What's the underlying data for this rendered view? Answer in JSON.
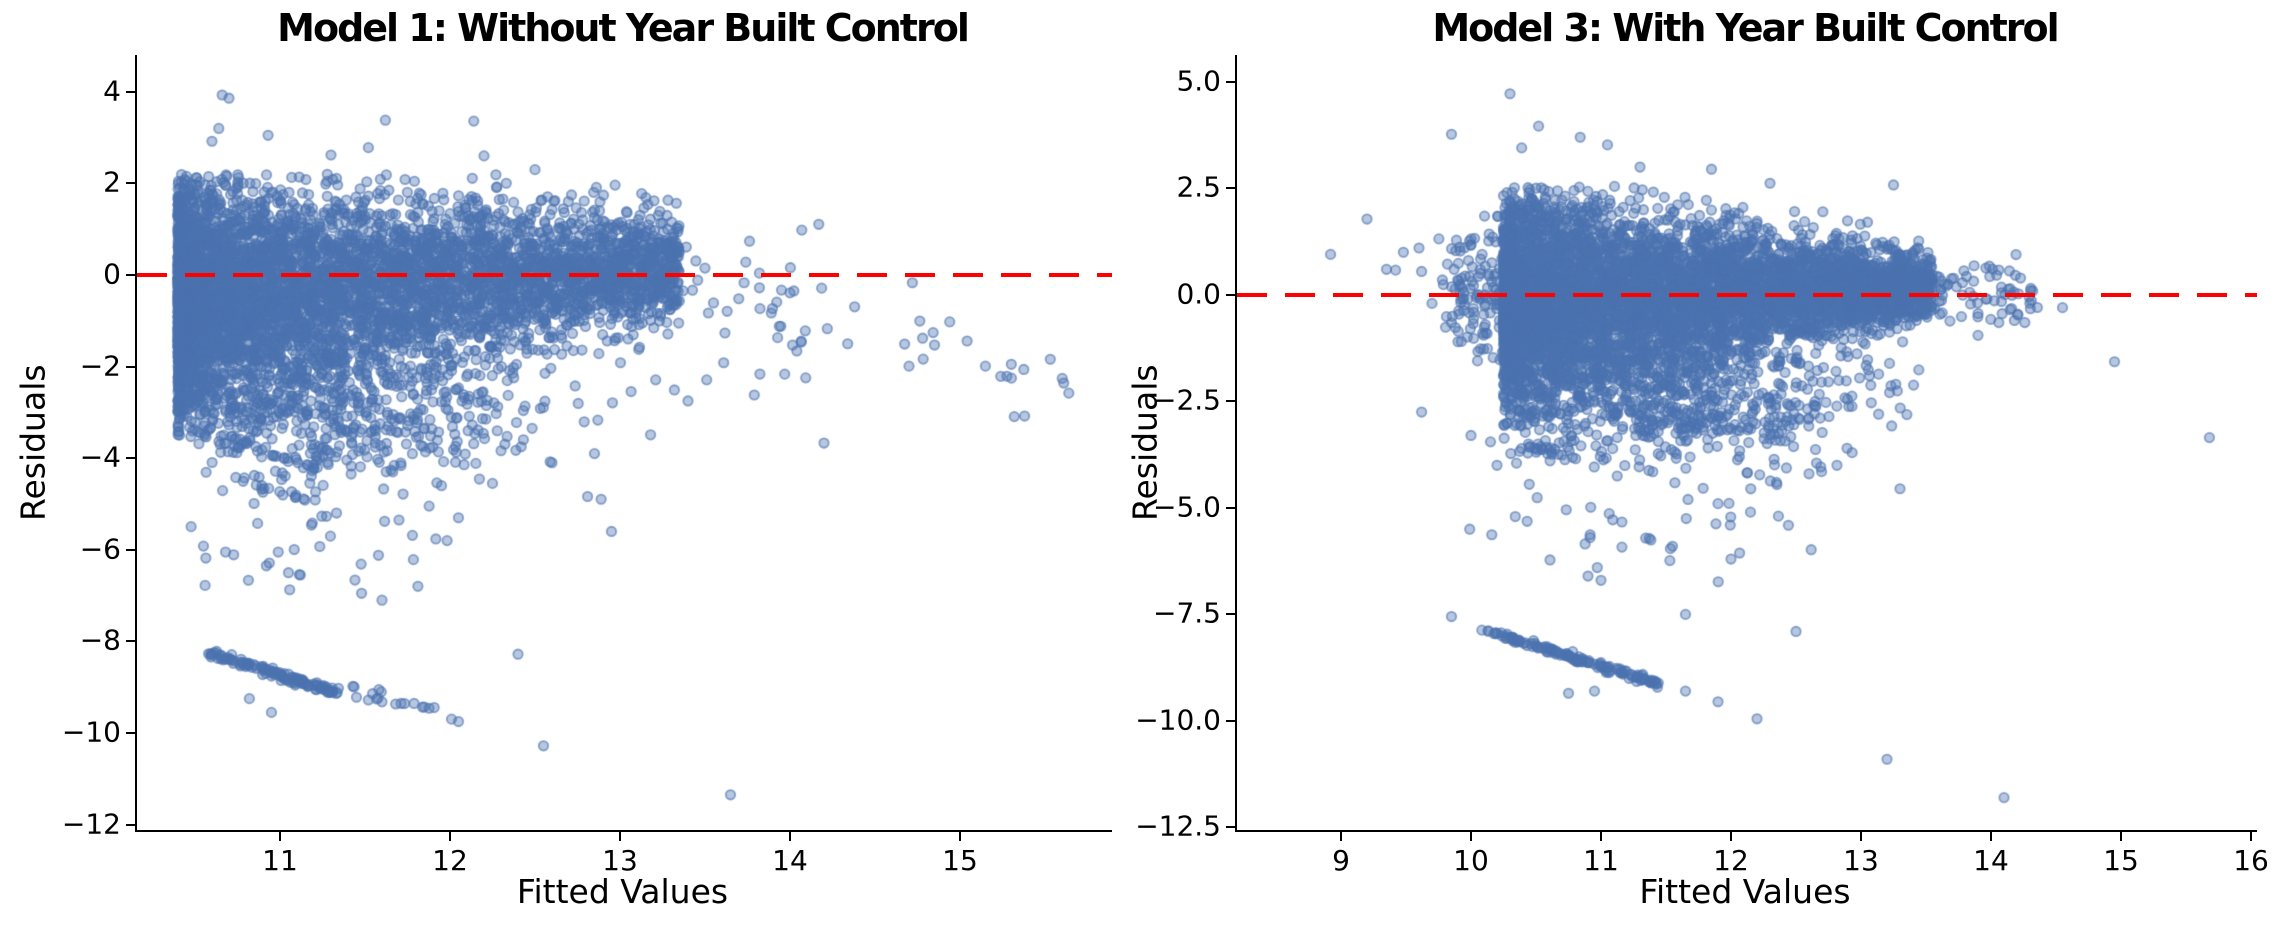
{
  "figure": {
    "background": "#FFFFFF",
    "text_color": "#000000",
    "spine_color": "#000000"
  },
  "chart_data": [
    {
      "type": "scatter",
      "title": "Model 1: Without Year Built Control",
      "xlabel": "Fitted Values",
      "ylabel": "Residuals",
      "xlim": [
        10.159,
        15.894
      ],
      "ylim": [
        -12.118,
        4.803
      ],
      "grid": false,
      "legend": null,
      "xticks": {
        "values": [
          11,
          12,
          13,
          14,
          15
        ],
        "labels": [
          "11",
          "12",
          "13",
          "14",
          "15"
        ]
      },
      "yticks": {
        "values": [
          4,
          2,
          0,
          -2,
          -4,
          -6,
          -8,
          -10,
          -12
        ],
        "labels": [
          "4",
          "2",
          "0",
          "−2",
          "−4",
          "−6",
          "−8",
          "−10",
          "−12"
        ]
      },
      "zero_line": {
        "y": 0,
        "color": "#FF0000",
        "style": "dashed",
        "width": 4,
        "dash": 30,
        "gap": 18
      },
      "marker": {
        "color": "#4C72B0",
        "alpha": 0.4,
        "edge_alpha": 0.62,
        "radius": 4.7,
        "edge_width": 1.8
      },
      "distribution": {
        "wedges": [
          {
            "n": 6000,
            "x0": 10.4,
            "x1": 13.35,
            "cy0": -0.55,
            "cy1": 0.15,
            "sy0": 1.3,
            "sy1": 0.55,
            "xbias": 2.0,
            "clip": [
              -3.6,
              2.25
            ]
          },
          {
            "n": 50,
            "x0": 13.3,
            "x1": 15.7,
            "cy0": -0.2,
            "cy1": -2.4,
            "sy0": 1.0,
            "sy1": 0.6,
            "xbias": 1.5,
            "clip": [
              -3.5,
              1.7
            ]
          }
        ],
        "gaussians": [
          {
            "n": 520,
            "cx": 11.3,
            "cy": -2.9,
            "sx": 0.65,
            "sy": 0.85,
            "clipx": [
              10.45,
              13.1
            ],
            "clipy": [
              -5.6,
              -1.6
            ]
          },
          {
            "n": 26,
            "cx": 11.25,
            "cy": -5.9,
            "sx": 0.5,
            "sy": 0.55,
            "clipx": [
              10.45,
              12.3
            ],
            "clipy": [
              -7.25,
              -4.7
            ]
          }
        ],
        "streaks": [
          {
            "x0": 10.62,
            "y0": -8.28,
            "x1": 11.33,
            "y1": -9.12,
            "n": 130,
            "jitter": 0.035
          },
          {
            "x0": 11.42,
            "y0": -9.0,
            "x1": 12.05,
            "y1": -9.62,
            "n": 16,
            "jitter": 0.07
          },
          {
            "x0": 10.62,
            "y0": -3.55,
            "x1": 11.28,
            "y1": -4.3,
            "n": 26,
            "jitter": 0.05
          },
          {
            "x0": 10.72,
            "y0": -4.45,
            "x1": 11.15,
            "y1": -4.9,
            "n": 13,
            "jitter": 0.05
          }
        ],
        "points": [
          [
            10.66,
            3.93
          ],
          [
            10.7,
            3.86
          ],
          [
            11.62,
            3.38
          ],
          [
            12.14,
            3.36
          ],
          [
            10.64,
            3.2
          ],
          [
            10.93,
            3.05
          ],
          [
            10.6,
            2.92
          ],
          [
            11.3,
            2.62
          ],
          [
            11.52,
            2.78
          ],
          [
            12.2,
            2.6
          ],
          [
            12.5,
            2.3
          ],
          [
            13.2,
            1.62
          ],
          [
            13.28,
            1.0
          ],
          [
            12.91,
            1.16
          ],
          [
            12.98,
            0.98
          ],
          [
            13.25,
            0.61
          ],
          [
            13.39,
            0.61
          ],
          [
            13.5,
            0.15
          ],
          [
            13.74,
            0.28
          ],
          [
            13.73,
            -0.17
          ],
          [
            13.82,
            0.04
          ],
          [
            13.82,
            -0.28
          ],
          [
            13.95,
            -0.33
          ],
          [
            14.0,
            -0.39
          ],
          [
            13.55,
            -0.61
          ],
          [
            13.52,
            -0.83
          ],
          [
            13.89,
            -0.83
          ],
          [
            14.09,
            -1.22
          ],
          [
            14.04,
            -1.66
          ],
          [
            14.78,
            -1.38
          ],
          [
            14.85,
            -1.53
          ],
          [
            14.7,
            -1.99
          ],
          [
            15.61,
            -2.36
          ],
          [
            15.64,
            -2.58
          ],
          [
            15.38,
            -3.08
          ],
          [
            13.18,
            -3.49
          ],
          [
            14.2,
            -3.67
          ],
          [
            13.21,
            -2.29
          ],
          [
            13.32,
            -2.51
          ],
          [
            13.4,
            -2.75
          ],
          [
            13.51,
            -2.29
          ],
          [
            13.79,
            -2.62
          ],
          [
            12.6,
            -4.1
          ],
          [
            12.85,
            -3.9
          ],
          [
            11.95,
            -4.6
          ],
          [
            12.25,
            -4.55
          ],
          [
            11.7,
            -5.35
          ],
          [
            12.05,
            -5.3
          ],
          [
            12.95,
            -5.6
          ],
          [
            10.55,
            -5.92
          ],
          [
            10.68,
            -6.05
          ],
          [
            10.92,
            -6.35
          ],
          [
            11.05,
            -6.5
          ],
          [
            11.12,
            -6.55
          ],
          [
            11.48,
            -6.95
          ],
          [
            11.6,
            -7.1
          ],
          [
            10.82,
            -9.25
          ],
          [
            10.95,
            -9.55
          ],
          [
            11.45,
            -9.22
          ],
          [
            11.52,
            -9.28
          ],
          [
            11.6,
            -9.32
          ],
          [
            12.4,
            -8.28
          ],
          [
            12.55,
            -10.28
          ],
          [
            12.05,
            -9.75
          ],
          [
            13.65,
            -11.35
          ]
        ]
      }
    },
    {
      "type": "scatter",
      "title": "Model 3: With Year Built Control",
      "xlabel": "Fitted Values",
      "ylabel": "Residuals",
      "xlim": [
        8.2,
        16.046
      ],
      "ylim": [
        -12.56,
        5.63
      ],
      "grid": false,
      "legend": null,
      "xticks": {
        "values": [
          9,
          10,
          11,
          12,
          13,
          14,
          15,
          16
        ],
        "labels": [
          "9",
          "10",
          "11",
          "12",
          "13",
          "14",
          "15",
          "16"
        ]
      },
      "yticks": {
        "values": [
          5.0,
          2.5,
          0.0,
          -2.5,
          -5.0,
          -7.5,
          -10.0,
          -12.5
        ],
        "labels": [
          "5.0",
          "2.5",
          "0.0",
          "−2.5",
          "−5.0",
          "−7.5",
          "−10.0",
          "−12.5"
        ]
      },
      "zero_line": {
        "y": 0,
        "color": "#FF0000",
        "style": "dashed",
        "width": 4,
        "dash": 30,
        "gap": 18
      },
      "marker": {
        "color": "#4C72B0",
        "alpha": 0.4,
        "edge_alpha": 0.62,
        "radius": 4.7,
        "edge_width": 1.8
      },
      "distribution": {
        "wedges": [
          {
            "n": 6400,
            "x0": 10.25,
            "x1": 13.55,
            "cy0": -0.2,
            "cy1": 0.2,
            "sy0": 1.3,
            "sy1": 0.35,
            "xbias": 1.55,
            "clip": [
              -3.1,
              2.55
            ]
          },
          {
            "n": 140,
            "x0": 9.72,
            "x1": 10.3,
            "cy0": 0.3,
            "cy1": -0.1,
            "sy0": 0.55,
            "sy1": 1.1,
            "xbias": 0.6,
            "clip": [
              -1.6,
              1.9
            ]
          },
          {
            "n": 70,
            "x0": 13.5,
            "x1": 14.4,
            "cy0": 0.15,
            "cy1": -0.05,
            "sy0": 0.42,
            "sy1": 0.3,
            "xbias": 1.3,
            "clip": [
              -0.9,
              1.0
            ]
          }
        ],
        "gaussians": [
          {
            "n": 600,
            "cx": 11.5,
            "cy": -2.4,
            "sx": 0.85,
            "sy": 0.85,
            "clipx": [
              10.25,
              13.6
            ],
            "clipy": [
              -5.2,
              -1.3
            ]
          },
          {
            "n": 30,
            "cx": 11.4,
            "cy": -5.6,
            "sx": 0.6,
            "sy": 0.6,
            "clipx": [
              10.3,
              12.8
            ],
            "clipy": [
              -6.9,
              -4.5
            ]
          }
        ],
        "streaks": [
          {
            "x0": 10.12,
            "y0": -7.88,
            "x1": 11.5,
            "y1": -9.2,
            "n": 150,
            "jitter": 0.035
          },
          {
            "x0": 10.4,
            "y0": -3.55,
            "x1": 10.78,
            "y1": -3.8,
            "n": 22,
            "jitter": 0.05
          }
        ],
        "points": [
          [
            10.3,
            4.72
          ],
          [
            10.52,
            3.96
          ],
          [
            9.85,
            3.77
          ],
          [
            10.84,
            3.7
          ],
          [
            11.05,
            3.52
          ],
          [
            10.39,
            3.45
          ],
          [
            11.3,
            3.0
          ],
          [
            11.85,
            2.95
          ],
          [
            12.3,
            2.62
          ],
          [
            13.25,
            2.58
          ],
          [
            8.92,
            0.95
          ],
          [
            9.2,
            1.78
          ],
          [
            9.35,
            0.6
          ],
          [
            9.42,
            0.58
          ],
          [
            9.48,
            1.0
          ],
          [
            9.6,
            1.1
          ],
          [
            9.62,
            0.55
          ],
          [
            9.78,
            0.35
          ],
          [
            9.7,
            -0.2
          ],
          [
            9.9,
            -1.1
          ],
          [
            10.05,
            -1.55
          ],
          [
            9.62,
            -2.75
          ],
          [
            10.0,
            -3.3
          ],
          [
            10.15,
            -3.45
          ],
          [
            10.2,
            -4.0
          ],
          [
            10.35,
            -3.95
          ],
          [
            14.95,
            -1.57
          ],
          [
            15.68,
            -3.35
          ],
          [
            14.06,
            -0.65
          ],
          [
            14.18,
            -0.6
          ],
          [
            14.26,
            -0.65
          ],
          [
            13.9,
            -0.95
          ],
          [
            14.08,
            0.05
          ],
          [
            14.55,
            -0.3
          ],
          [
            12.35,
            -4.4
          ],
          [
            12.6,
            -4.2
          ],
          [
            13.3,
            -4.55
          ],
          [
            11.9,
            -4.9
          ],
          [
            12.15,
            -5.1
          ],
          [
            11.55,
            -5.9
          ],
          [
            12.0,
            -6.2
          ],
          [
            9.99,
            -5.5
          ],
          [
            10.16,
            -5.63
          ],
          [
            10.9,
            -6.6
          ],
          [
            11.0,
            -6.7
          ],
          [
            9.85,
            -7.55
          ],
          [
            11.65,
            -7.5
          ],
          [
            12.5,
            -7.9
          ],
          [
            10.75,
            -9.35
          ],
          [
            10.95,
            -9.3
          ],
          [
            11.65,
            -9.3
          ],
          [
            11.9,
            -9.55
          ],
          [
            12.2,
            -9.95
          ],
          [
            13.2,
            -10.9
          ],
          [
            14.1,
            -11.8
          ]
        ]
      }
    }
  ]
}
